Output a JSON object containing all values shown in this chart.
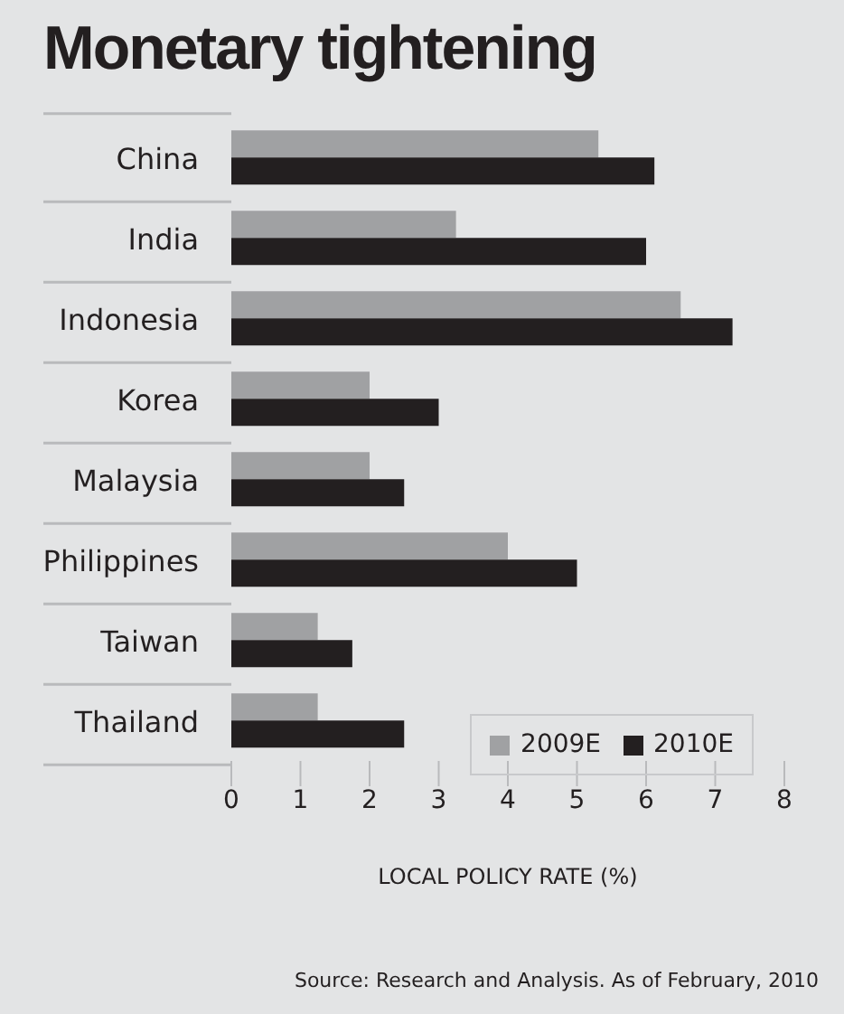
{
  "chart_data": {
    "type": "bar",
    "orientation": "horizontal",
    "title": "Monetary tightening",
    "xlabel": "LOCAL POLICY RATE (%)",
    "categories": [
      "China",
      "India",
      "Indonesia",
      "Korea",
      "Malaysia",
      "Philippines",
      "Taiwan",
      "Thailand"
    ],
    "series": [
      {
        "name": "2009E",
        "color": "#a0a1a3",
        "values": [
          5.31,
          3.25,
          6.5,
          2,
          2,
          4,
          1.25,
          1.25
        ]
      },
      {
        "name": "2010E",
        "color": "#231f20",
        "values": [
          6.12,
          6,
          7.25,
          3,
          2.5,
          5,
          1.75,
          2.5
        ]
      }
    ],
    "xlim": [
      0,
      8
    ],
    "xticks": [
      0,
      1,
      2,
      3,
      4,
      5,
      6,
      7,
      8
    ],
    "grid": false,
    "legend": "bottom right",
    "annotations": [
      "Source: Research and Analysis. As of February, 2010"
    ]
  }
}
